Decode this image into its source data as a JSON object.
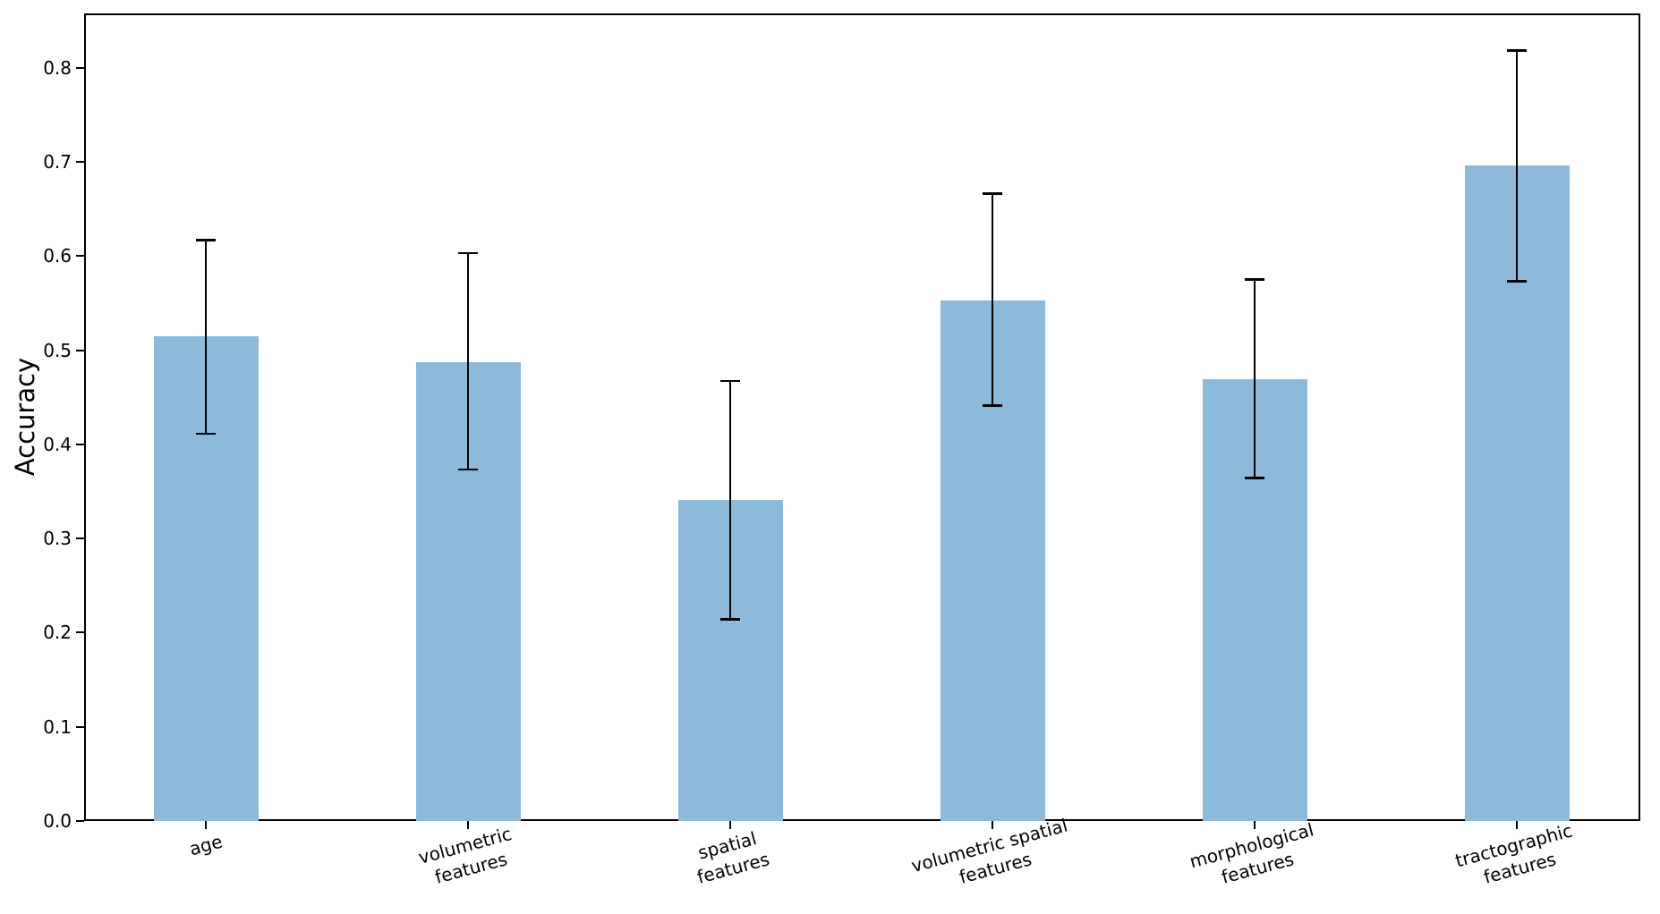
{
  "figure": {
    "background": "#ffffff"
  },
  "chart_data": {
    "type": "bar",
    "title": "",
    "xlabel": "",
    "ylabel": "Accuracy",
    "categories": [
      "age",
      "volumetric\nfeatures",
      "spatial\nfeatures",
      "volumetric spatial\nfeatures",
      "morphological\nfeatures",
      "tractographic\nfeatures"
    ],
    "values": [
      0.515,
      0.487,
      0.341,
      0.553,
      0.469,
      0.696
    ],
    "error_bars": {
      "low": [
        0.411,
        0.373,
        0.214,
        0.441,
        0.364,
        0.573
      ],
      "high": [
        0.617,
        0.603,
        0.467,
        0.666,
        0.575,
        0.818
      ]
    },
    "yticks": [
      "0.0",
      "0.1",
      "0.2",
      "0.3",
      "0.4",
      "0.5",
      "0.6",
      "0.7",
      "0.8"
    ],
    "ylim": [
      0,
      0.858
    ],
    "grid": false,
    "legend": null,
    "x_label_rotation_deg": 15,
    "bar_color": "#8dbadb",
    "error_color": "#000000",
    "axis_color": "#000000"
  }
}
